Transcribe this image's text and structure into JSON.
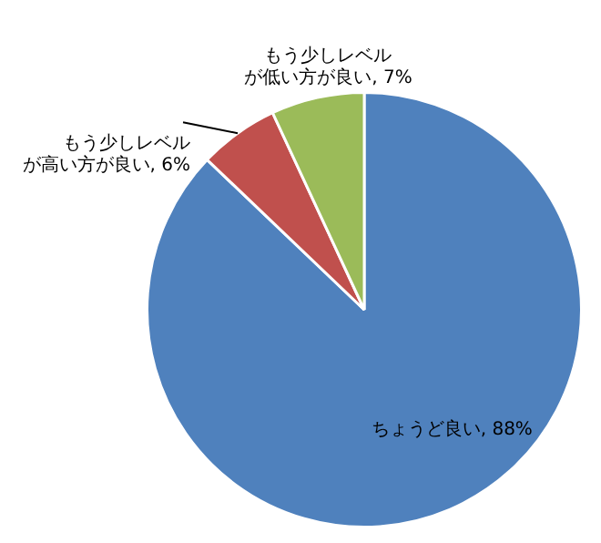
{
  "chart_data": {
    "type": "pie",
    "categories": [
      "ちょうど良い",
      "もう少しレベルが高い方が良い",
      "もう少しレベルが低い方が良い"
    ],
    "values": [
      88,
      6,
      7
    ],
    "value_labels": [
      "88%",
      "6%",
      "7%"
    ],
    "colors": [
      "#4f81bd",
      "#c0504d",
      "#9bbb59"
    ],
    "legend": false
  }
}
